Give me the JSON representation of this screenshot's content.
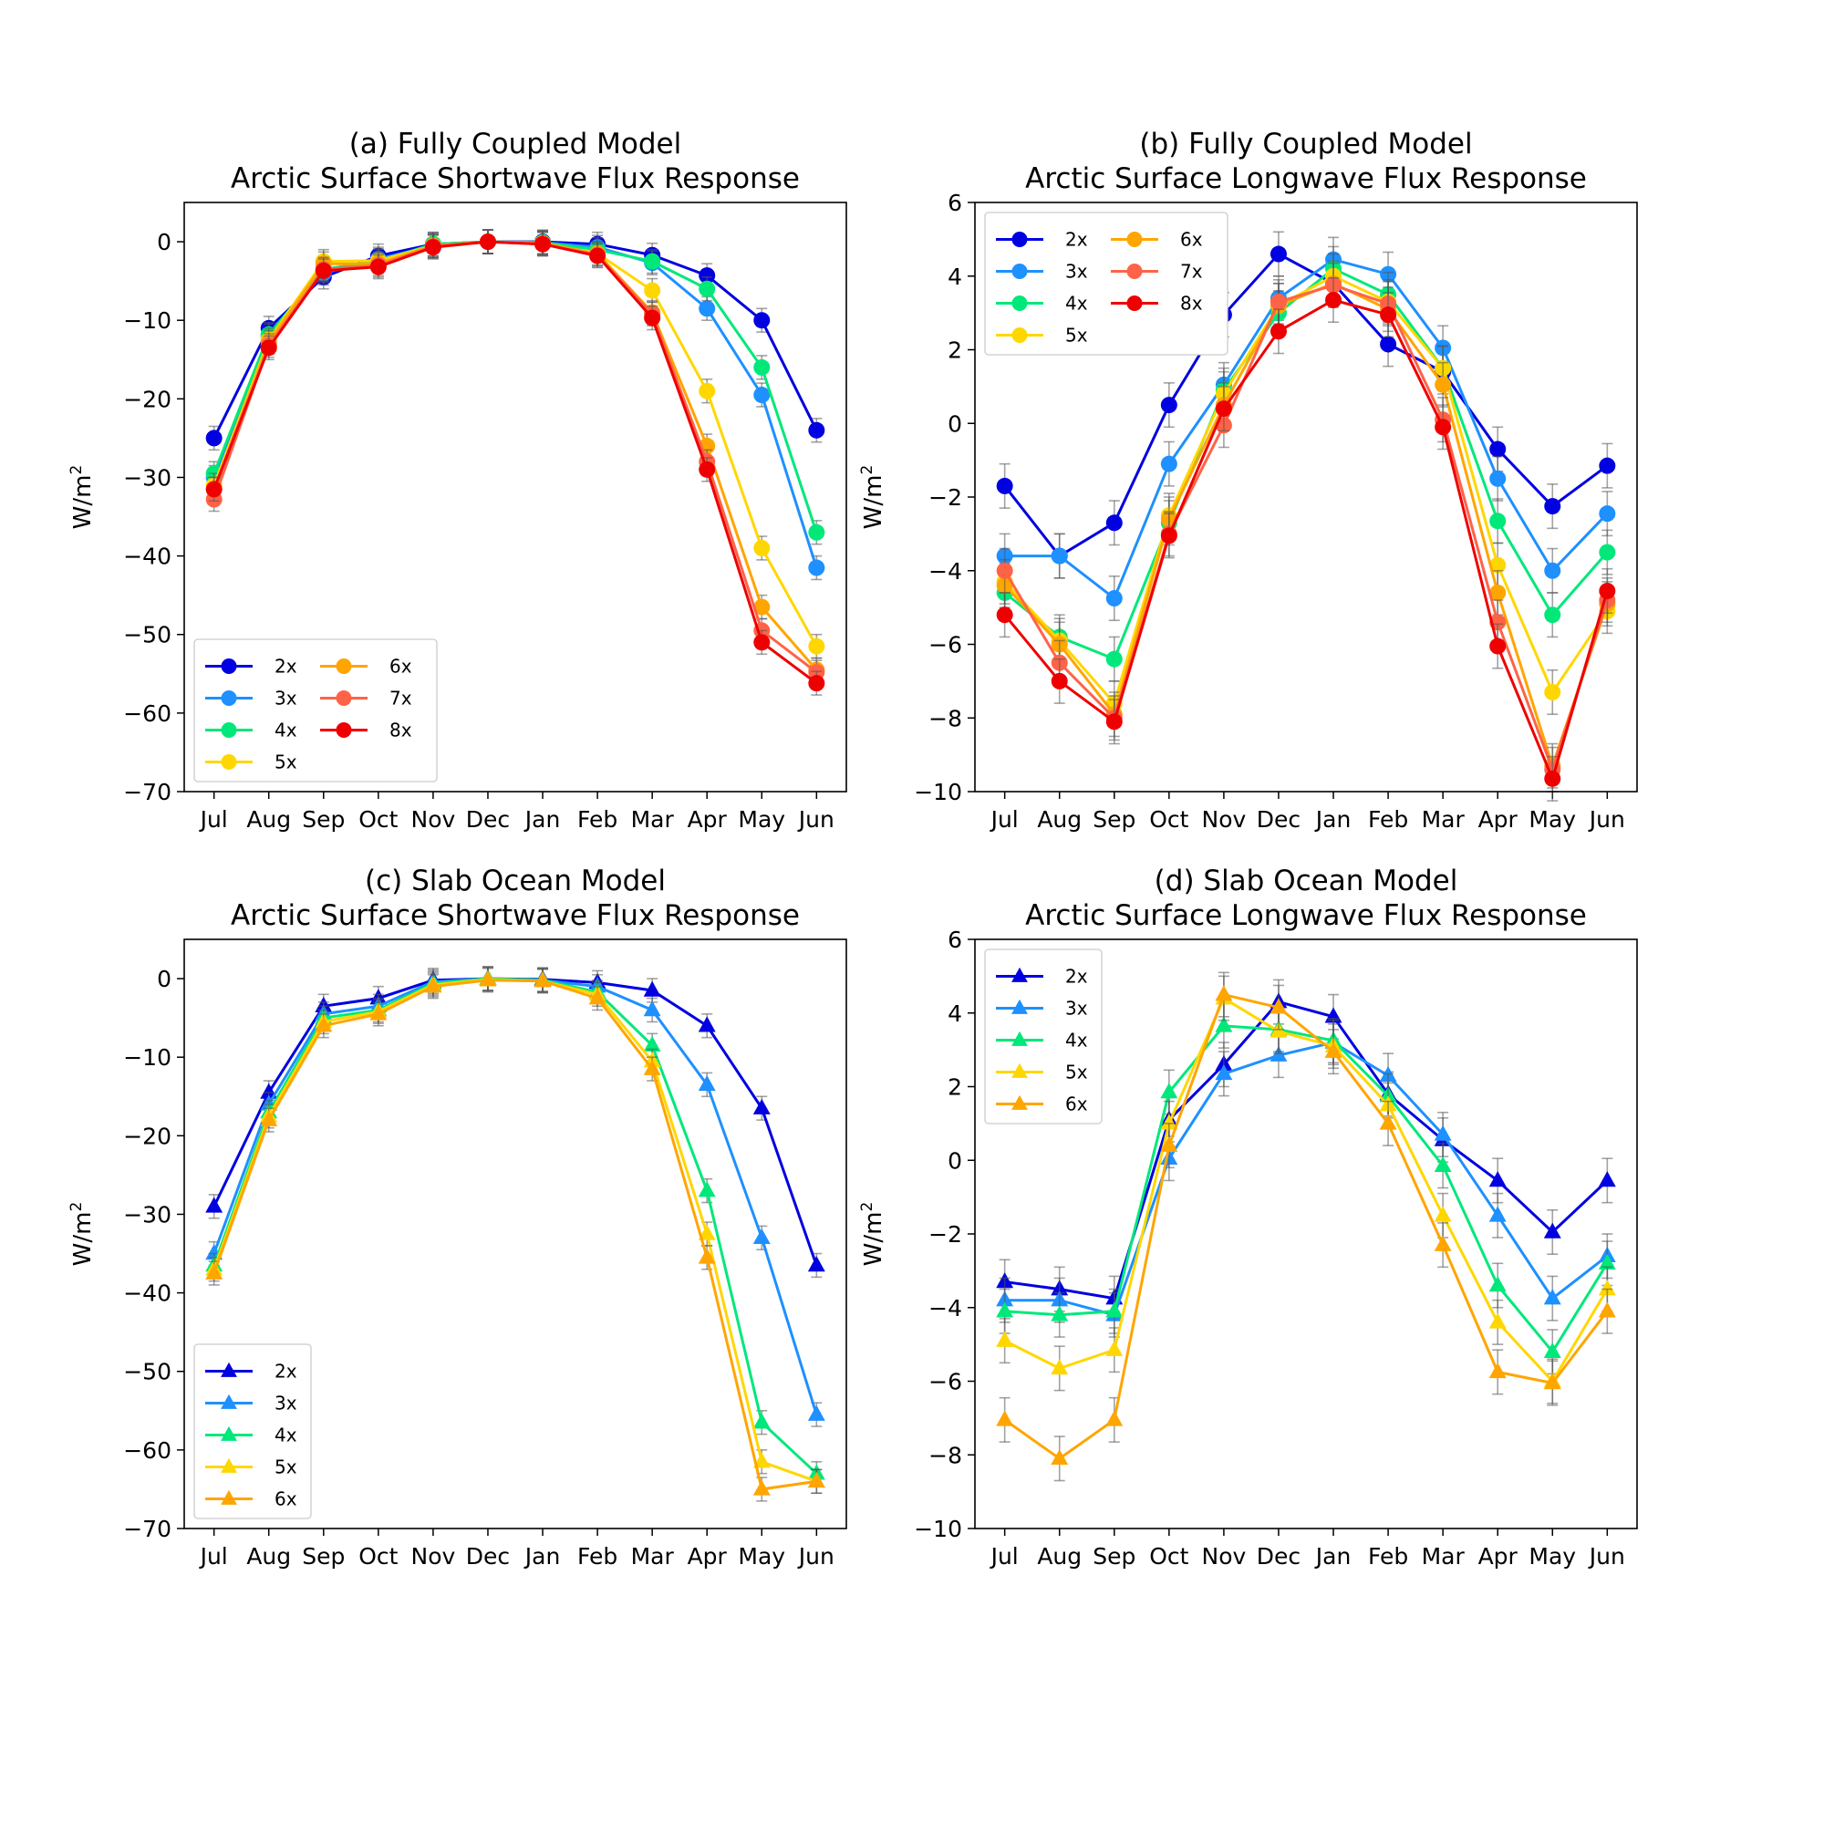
{
  "months": [
    "Jul",
    "Aug",
    "Sep",
    "Oct",
    "Nov",
    "Dec",
    "Jan",
    "Feb",
    "Mar",
    "Apr",
    "May",
    "Jun"
  ],
  "colors": {
    "2x": "#0000e0",
    "3x": "#1e90ff",
    "4x": "#00e87a",
    "5x": "#ffd700",
    "6x": "#ffa500",
    "7x": "#ff6347",
    "8x": "#ee0000",
    "errorbar": "#555555"
  },
  "chart_data": [
    {
      "type": "line",
      "title": "(a) Fully Coupled Model\nArctic Surface Shortwave Flux Response",
      "ylabel": "W/m",
      "ylabel_superscript": "2",
      "ylim": [
        -70,
        5
      ],
      "yticks": [
        0,
        -10,
        -20,
        -30,
        -40,
        -50,
        -60,
        -70
      ],
      "ytick_labels": [
        "0",
        "−10",
        "−20",
        "−30",
        "−40",
        "−50",
        "−60",
        "−70"
      ],
      "marker": "circle",
      "legend": "lower-left",
      "legend_columns": 2,
      "categories": [
        "Jul",
        "Aug",
        "Sep",
        "Oct",
        "Nov",
        "Dec",
        "Jan",
        "Feb",
        "Mar",
        "Apr",
        "May",
        "Jun"
      ],
      "series": [
        {
          "name": "2x",
          "values": [
            -25,
            -11,
            -4.5,
            -1.8,
            -0.3,
            0,
            0,
            -0.3,
            -1.7,
            -4.3,
            -10,
            -24
          ]
        },
        {
          "name": "3x",
          "values": [
            -30,
            -12,
            -4,
            -2.2,
            -0.5,
            0,
            -0.1,
            -0.7,
            -2.7,
            -8.5,
            -19.5,
            -41.5
          ]
        },
        {
          "name": "4x",
          "values": [
            -29.5,
            -11.8,
            -3.5,
            -2.5,
            -0.3,
            0,
            -0.1,
            -1,
            -2.5,
            -6,
            -16,
            -37
          ]
        },
        {
          "name": "5x",
          "values": [
            -31,
            -12.5,
            -2.5,
            -2.4,
            -0.5,
            0,
            -0.2,
            -1.5,
            -6.2,
            -19,
            -39,
            -51.5
          ]
        },
        {
          "name": "6x",
          "values": [
            -31.5,
            -12.8,
            -2.8,
            -2.8,
            -0.5,
            0,
            -0.2,
            -1.5,
            -9,
            -26,
            -46.5,
            -54.5
          ]
        },
        {
          "name": "7x",
          "values": [
            -32.8,
            -13.2,
            -3.5,
            -3,
            -0.6,
            0,
            -0.3,
            -1.7,
            -9.2,
            -28,
            -49.5,
            -54.8
          ]
        },
        {
          "name": "8x",
          "values": [
            -31.5,
            -13.5,
            -3.7,
            -3.2,
            -0.7,
            0,
            -0.3,
            -1.8,
            -9.7,
            -29,
            -51,
            -56.2
          ]
        }
      ],
      "error": 1.5
    },
    {
      "type": "line",
      "title": "(b) Fully Coupled Model\nArctic Surface Longwave Flux Response",
      "ylabel": "W/m",
      "ylabel_superscript": "2",
      "ylim": [
        -10,
        6
      ],
      "yticks": [
        6,
        4,
        2,
        0,
        -2,
        -4,
        -6,
        -8,
        -10
      ],
      "ytick_labels": [
        "6",
        "4",
        "2",
        "0",
        "−2",
        "−4",
        "−6",
        "−8",
        "−10"
      ],
      "marker": "circle",
      "legend": "upper-left",
      "legend_columns": 2,
      "categories": [
        "Jul",
        "Aug",
        "Sep",
        "Oct",
        "Nov",
        "Dec",
        "Jan",
        "Feb",
        "Mar",
        "Apr",
        "May",
        "Jun"
      ],
      "series": [
        {
          "name": "2x",
          "values": [
            -1.7,
            -3.6,
            -2.7,
            0.5,
            2.95,
            4.6,
            3.8,
            2.15,
            1.4,
            -0.7,
            -2.25,
            -1.15
          ]
        },
        {
          "name": "3x",
          "values": [
            -3.6,
            -3.6,
            -4.75,
            -1.1,
            1.05,
            3.4,
            4.45,
            4.05,
            2.05,
            -1.5,
            -4,
            -2.45
          ]
        },
        {
          "name": "4x",
          "values": [
            -4.6,
            -5.8,
            -6.4,
            -2.7,
            0.9,
            3,
            4.2,
            3.5,
            1.5,
            -2.65,
            -5.2,
            -3.5
          ]
        },
        {
          "name": "5x",
          "values": [
            -4.3,
            -5.9,
            -7.6,
            -2.5,
            0.8,
            3.2,
            4,
            3.3,
            1.5,
            -3.85,
            -7.3,
            -5.1
          ]
        },
        {
          "name": "6x",
          "values": [
            -4.4,
            -6,
            -7.9,
            -2.6,
            0.5,
            3.2,
            3.8,
            3.1,
            1.05,
            -4.6,
            -9.3,
            -4.9
          ]
        },
        {
          "name": "7x",
          "values": [
            -4,
            -6.5,
            -8,
            -3,
            -0.05,
            3.3,
            3.75,
            3.25,
            0.1,
            -5.4,
            -9.4,
            -4.8
          ]
        },
        {
          "name": "8x",
          "values": [
            -5.2,
            -7,
            -8.1,
            -3.05,
            0.4,
            2.5,
            3.35,
            2.95,
            -0.1,
            -6.05,
            -9.65,
            -4.55
          ]
        }
      ],
      "error": 0.6
    },
    {
      "type": "line",
      "title": "(c) Slab Ocean Model\nArctic Surface Shortwave Flux Response",
      "ylabel": "W/m",
      "ylabel_superscript": "2",
      "ylim": [
        -70,
        5
      ],
      "yticks": [
        0,
        -10,
        -20,
        -30,
        -40,
        -50,
        -60,
        -70
      ],
      "ytick_labels": [
        "0",
        "−10",
        "−20",
        "−30",
        "−40",
        "−50",
        "−60",
        "−70"
      ],
      "marker": "triangle",
      "legend": "lower-left",
      "legend_columns": 1,
      "categories": [
        "Jul",
        "Aug",
        "Sep",
        "Oct",
        "Nov",
        "Dec",
        "Jan",
        "Feb",
        "Mar",
        "Apr",
        "May",
        "Jun"
      ],
      "series": [
        {
          "name": "2x",
          "values": [
            -29,
            -14.5,
            -3.5,
            -2.5,
            -0.2,
            0,
            -0.1,
            -0.5,
            -1.5,
            -6,
            -16.5,
            -36.5
          ]
        },
        {
          "name": "3x",
          "values": [
            -35,
            -16,
            -4.5,
            -3.5,
            -0.4,
            0,
            -0.2,
            -1,
            -4,
            -13.5,
            -33,
            -55.5
          ]
        },
        {
          "name": "4x",
          "values": [
            -36.5,
            -17,
            -5,
            -4,
            -0.6,
            0,
            -0.2,
            -1.7,
            -8.5,
            -27,
            -56.5,
            -63
          ]
        },
        {
          "name": "5x",
          "values": [
            -37,
            -17.5,
            -5.5,
            -4.2,
            -0.8,
            -0.1,
            -0.3,
            -2,
            -10.5,
            -32.5,
            -61.5,
            -64
          ]
        },
        {
          "name": "6x",
          "values": [
            -37.5,
            -18,
            -6,
            -4.5,
            -1,
            -0.2,
            -0.3,
            -2.5,
            -11.5,
            -35.5,
            -65,
            -64
          ]
        }
      ],
      "error": 1.5
    },
    {
      "type": "line",
      "title": "(d) Slab Ocean Model\nArctic Surface Longwave Flux Response",
      "ylabel": "W/m",
      "ylabel_superscript": "2",
      "ylim": [
        -10,
        6
      ],
      "yticks": [
        6,
        4,
        2,
        0,
        -2,
        -4,
        -6,
        -8,
        -10
      ],
      "ytick_labels": [
        "6",
        "4",
        "2",
        "0",
        "−2",
        "−4",
        "−6",
        "−8",
        "−10"
      ],
      "marker": "triangle",
      "legend": "upper-left",
      "legend_columns": 1,
      "categories": [
        "Jul",
        "Aug",
        "Sep",
        "Oct",
        "Nov",
        "Dec",
        "Jan",
        "Feb",
        "Mar",
        "Apr",
        "May",
        "Jun"
      ],
      "series": [
        {
          "name": "2x",
          "values": [
            -3.3,
            -3.5,
            -3.75,
            1.1,
            2.6,
            4.3,
            3.9,
            1.8,
            0.55,
            -0.55,
            -1.95,
            -0.55
          ]
        },
        {
          "name": "3x",
          "values": [
            -3.8,
            -3.8,
            -4.2,
            0.05,
            2.35,
            2.85,
            3.2,
            2.3,
            0.7,
            -1.5,
            -3.75,
            -2.6
          ]
        },
        {
          "name": "4x",
          "values": [
            -4.1,
            -4.2,
            -4.1,
            1.85,
            3.65,
            3.55,
            3.25,
            1.75,
            -0.15,
            -3.4,
            -5.2,
            -2.8
          ]
        },
        {
          "name": "5x",
          "values": [
            -4.9,
            -5.65,
            -5.15,
            1,
            4.4,
            3.5,
            3.1,
            1.5,
            -1.5,
            -4.4,
            -6,
            -3.5
          ]
        },
        {
          "name": "6x",
          "values": [
            -7.05,
            -8.1,
            -7.05,
            0.4,
            4.5,
            4.15,
            2.95,
            1,
            -2.3,
            -5.75,
            -6.05,
            -4.1
          ]
        }
      ],
      "error": 0.6
    }
  ]
}
